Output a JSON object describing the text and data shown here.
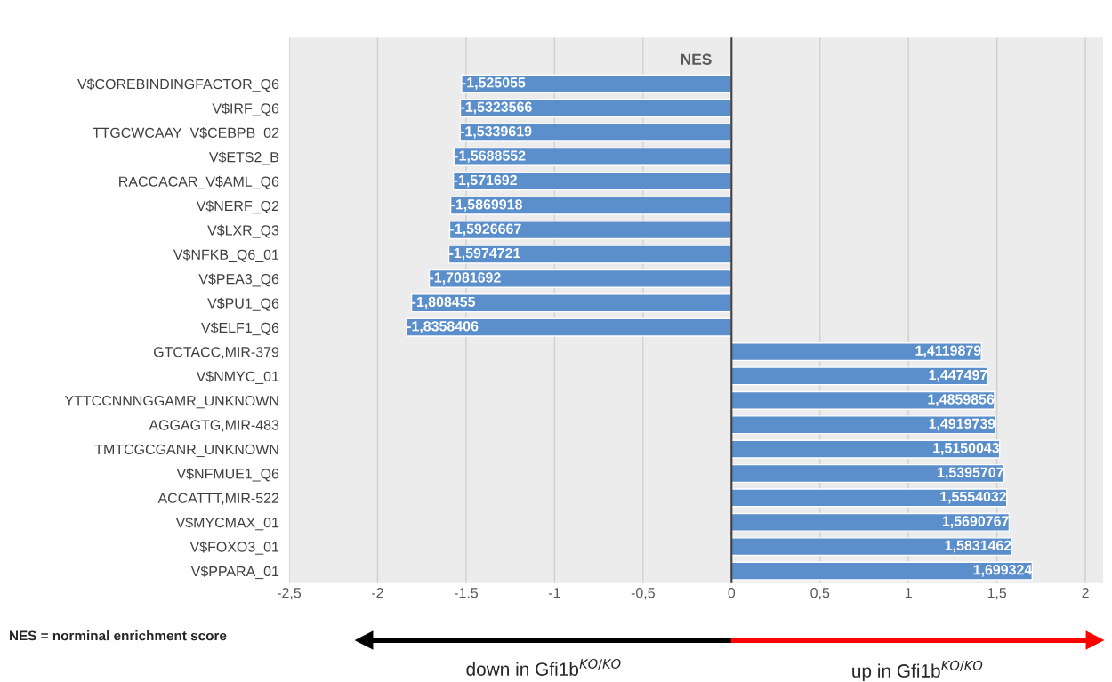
{
  "chart_data": {
    "type": "bar",
    "orientation": "horizontal",
    "title": "NES",
    "categories": [
      "V$COREBINDINGFACTOR_Q6",
      "V$IRF_Q6",
      "TTGCWCAAY_V$CEBPB_02",
      "V$ETS2_B",
      "RACCACAR_V$AML_Q6",
      "V$NERF_Q2",
      "V$LXR_Q3",
      "V$NFKB_Q6_01",
      "V$PEA3_Q6",
      "V$PU1_Q6",
      "V$ELF1_Q6",
      "GTCTACC,MIR-379",
      "V$NMYC_01",
      "YTTCCNNNGGAMR_UNKNOWN",
      "AGGAGTG,MIR-483",
      "TMTCGCGANR_UNKNOWN",
      "V$NFMUE1_Q6",
      "ACCATTT,MIR-522",
      "V$MYCMAX_01",
      "V$FOXO3_01",
      "V$PPARA_01"
    ],
    "values": [
      -1.525055,
      -1.5323566,
      -1.5339619,
      -1.5688552,
      -1.571692,
      -1.5869918,
      -1.5926667,
      -1.5974721,
      -1.7081692,
      -1.808455,
      -1.8358406,
      1.4119879,
      1.447497,
      1.4859856,
      1.4919739,
      1.5150043,
      1.5395707,
      1.5554032,
      1.5690767,
      1.5831462,
      1.699324
    ],
    "value_labels": [
      "-1,525055",
      "-1,5323566",
      "-1,5339619",
      "-1,5688552",
      "-1,571692",
      "-1,5869918",
      "-1,5926667",
      "-1,5974721",
      "-1,7081692",
      "-1,808455",
      "-1,8358406",
      "1,4119879",
      "1,447497",
      "1,4859856",
      "1,4919739",
      "1,5150043",
      "1,5395707",
      "1,5554032",
      "1,5690767",
      "1,5831462",
      "1,699324"
    ],
    "color": "#5b8fcb",
    "xlim": [
      -2.5,
      2.1
    ],
    "xticks": [
      {
        "value": -2.5,
        "label": "-2,5"
      },
      -2,
      -1.5,
      -1,
      {
        "value": -0.5,
        "label": "-0,5"
      },
      0,
      {
        "value": 0.5,
        "label": "0,5"
      },
      1,
      {
        "value": 1.5,
        "label": "1,5"
      },
      2
    ],
    "grid": "x",
    "annotations": [
      "NES = norminal enrichment score",
      "down in Gfi1b$^{KO/KO}$",
      "up in Gfi1b$^{KO/KO}$"
    ]
  }
}
